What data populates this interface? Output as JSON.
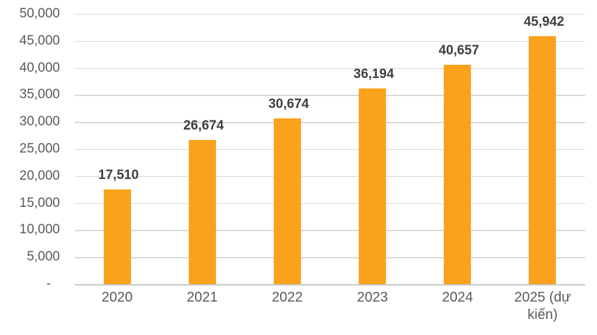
{
  "chart_data": {
    "type": "bar",
    "title": "",
    "xlabel": "",
    "ylabel": "",
    "categories": [
      "2020",
      "2021",
      "2022",
      "2023",
      "2024",
      "2025 (dự kiến)"
    ],
    "values": [
      17510,
      26674,
      30674,
      36194,
      40657,
      45942
    ],
    "value_labels": [
      "17,510",
      "26,674",
      "30,674",
      "36,194",
      "40,657",
      "45,942"
    ],
    "y_tick_labels": [
      "50,000",
      "45,000",
      "40,000",
      "35,000",
      "30,000",
      "25,000",
      "20,000",
      "15,000",
      "10,000",
      "5,000",
      "-"
    ],
    "ylim": [
      0,
      50000
    ],
    "y_step": 5000,
    "grid": true,
    "legend_position": "none",
    "colors": {
      "bar": "#faa21b",
      "gridline": "#d9d9d9",
      "value_label": "#3f3f3f",
      "axis_label": "#595959",
      "background": "#ffffff"
    }
  }
}
